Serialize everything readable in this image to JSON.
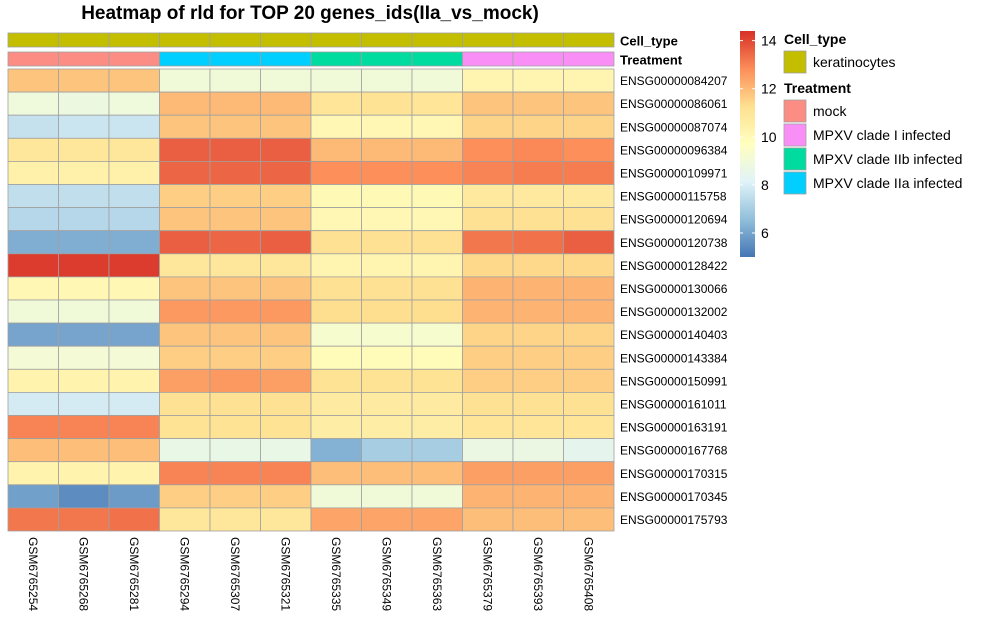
{
  "chart_data": {
    "type": "heatmap",
    "title": "Heatmap of rld for TOP 20 genes_ids(IIa_vs_mock)",
    "columns": [
      "GSM6765254",
      "GSM6765268",
      "GSM6765281",
      "GSM6765294",
      "GSM6765307",
      "GSM6765321",
      "GSM6765335",
      "GSM6765349",
      "GSM6765363",
      "GSM6765379",
      "GSM6765393",
      "GSM6765408"
    ],
    "rows": [
      "ENSG00000084207",
      "ENSG00000086061",
      "ENSG00000087074",
      "ENSG00000096384",
      "ENSG00000109971",
      "ENSG00000115758",
      "ENSG00000120694",
      "ENSG00000120738",
      "ENSG00000128422",
      "ENSG00000130066",
      "ENSG00000132002",
      "ENSG00000140403",
      "ENSG00000143384",
      "ENSG00000150991",
      "ENSG00000161011",
      "ENSG00000163191",
      "ENSG00000167768",
      "ENSG00000170315",
      "ENSG00000170345",
      "ENSG00000175793"
    ],
    "values": [
      [
        11.8,
        11.8,
        11.8,
        9.0,
        9.0,
        9.0,
        9.0,
        9.0,
        9.0,
        10.2,
        10.2,
        10.2
      ],
      [
        8.9,
        8.8,
        8.9,
        12.0,
        12.0,
        12.0,
        11.0,
        11.1,
        11.0,
        11.8,
        11.8,
        11.8
      ],
      [
        7.6,
        7.7,
        7.7,
        11.8,
        11.8,
        11.8,
        10.1,
        10.1,
        10.1,
        11.5,
        11.5,
        11.5
      ],
      [
        10.9,
        10.9,
        10.9,
        13.6,
        13.6,
        13.6,
        12.0,
        12.0,
        12.0,
        12.8,
        12.9,
        12.8
      ],
      [
        10.4,
        10.4,
        10.4,
        13.5,
        13.5,
        13.5,
        12.8,
        12.8,
        12.8,
        13.0,
        13.1,
        13.1
      ],
      [
        7.5,
        7.5,
        7.5,
        11.6,
        11.6,
        11.6,
        10.0,
        10.0,
        10.0,
        10.8,
        10.8,
        10.8
      ],
      [
        7.3,
        7.3,
        7.3,
        11.8,
        11.8,
        11.8,
        10.1,
        10.1,
        10.1,
        11.2,
        11.2,
        11.2
      ],
      [
        6.2,
        6.2,
        6.2,
        13.6,
        13.5,
        13.6,
        11.2,
        11.2,
        11.2,
        13.2,
        13.3,
        13.6
      ],
      [
        14.2,
        14.2,
        14.2,
        10.9,
        10.9,
        10.9,
        10.2,
        10.2,
        10.2,
        11.4,
        11.4,
        11.4
      ],
      [
        10.1,
        10.1,
        10.1,
        11.8,
        11.8,
        11.8,
        11.2,
        11.2,
        11.2,
        12.1,
        12.1,
        12.1
      ],
      [
        9.0,
        9.0,
        9.0,
        12.6,
        12.6,
        12.6,
        11.3,
        11.3,
        11.3,
        12.1,
        12.1,
        12.1
      ],
      [
        6.0,
        6.0,
        6.0,
        11.8,
        11.8,
        11.8,
        9.3,
        9.3,
        9.3,
        11.5,
        11.5,
        11.5
      ],
      [
        9.1,
        9.1,
        9.1,
        11.6,
        11.6,
        11.6,
        9.9,
        9.9,
        9.9,
        11.6,
        11.6,
        11.6
      ],
      [
        10.3,
        10.3,
        10.3,
        12.5,
        12.6,
        12.5,
        11.1,
        11.1,
        11.1,
        11.6,
        11.6,
        11.6
      ],
      [
        7.9,
        7.9,
        7.9,
        11.2,
        11.2,
        11.2,
        10.7,
        10.7,
        10.7,
        11.2,
        11.2,
        11.2
      ],
      [
        13.0,
        13.0,
        13.0,
        11.1,
        11.1,
        11.1,
        10.6,
        10.6,
        10.6,
        11.0,
        11.0,
        11.0
      ],
      [
        11.9,
        11.9,
        11.9,
        8.6,
        8.6,
        8.6,
        6.3,
        7.0,
        7.0,
        8.7,
        8.7,
        8.4
      ],
      [
        10.3,
        10.3,
        10.3,
        13.0,
        13.0,
        13.0,
        11.9,
        11.9,
        11.9,
        12.5,
        12.5,
        12.5
      ],
      [
        5.9,
        5.5,
        5.8,
        11.6,
        11.6,
        11.6,
        9.0,
        9.0,
        9.0,
        12.1,
        12.1,
        12.1
      ],
      [
        13.2,
        13.2,
        13.3,
        10.9,
        10.9,
        10.9,
        12.4,
        12.4,
        12.4,
        11.9,
        11.9,
        11.9
      ]
    ],
    "color_scale": {
      "ticks": [
        6,
        8,
        10,
        12,
        14
      ],
      "min": 5.0,
      "max": 14.4,
      "colors": [
        "#4575b4",
        "#91bfdb",
        "#e0f3f8",
        "#ffffbf",
        "#fee090",
        "#fc8d59",
        "#d73027"
      ]
    },
    "annotations": {
      "cell_type": {
        "label": "Cell_type",
        "values": [
          "keratinocytes",
          "keratinocytes",
          "keratinocytes",
          "keratinocytes",
          "keratinocytes",
          "keratinocytes",
          "keratinocytes",
          "keratinocytes",
          "keratinocytes",
          "keratinocytes",
          "keratinocytes",
          "keratinocytes"
        ]
      },
      "treatment": {
        "label": "Treatment",
        "values": [
          "mock",
          "mock",
          "mock",
          "MPXV clade IIa infected",
          "MPXV clade IIa infected",
          "MPXV clade IIa infected",
          "MPXV clade IIb infected",
          "MPXV clade IIb infected",
          "MPXV clade IIb infected",
          "MPXV clade I infected",
          "MPXV clade I infected",
          "MPXV clade I infected"
        ]
      }
    },
    "legend": [
      {
        "title": "Cell_type",
        "items": [
          {
            "label": "keratinocytes",
            "color": "#c4be00"
          }
        ]
      },
      {
        "title": "Treatment",
        "items": [
          {
            "label": "mock",
            "color": "#fc8d84"
          },
          {
            "label": "MPXV clade I infected",
            "color": "#fa8ef7"
          },
          {
            "label": "MPXV clade IIb infected",
            "color": "#00dba0"
          },
          {
            "label": "MPXV clade IIa infected",
            "color": "#00cfff"
          }
        ]
      }
    ],
    "legend_placement": "right",
    "grid": true
  }
}
